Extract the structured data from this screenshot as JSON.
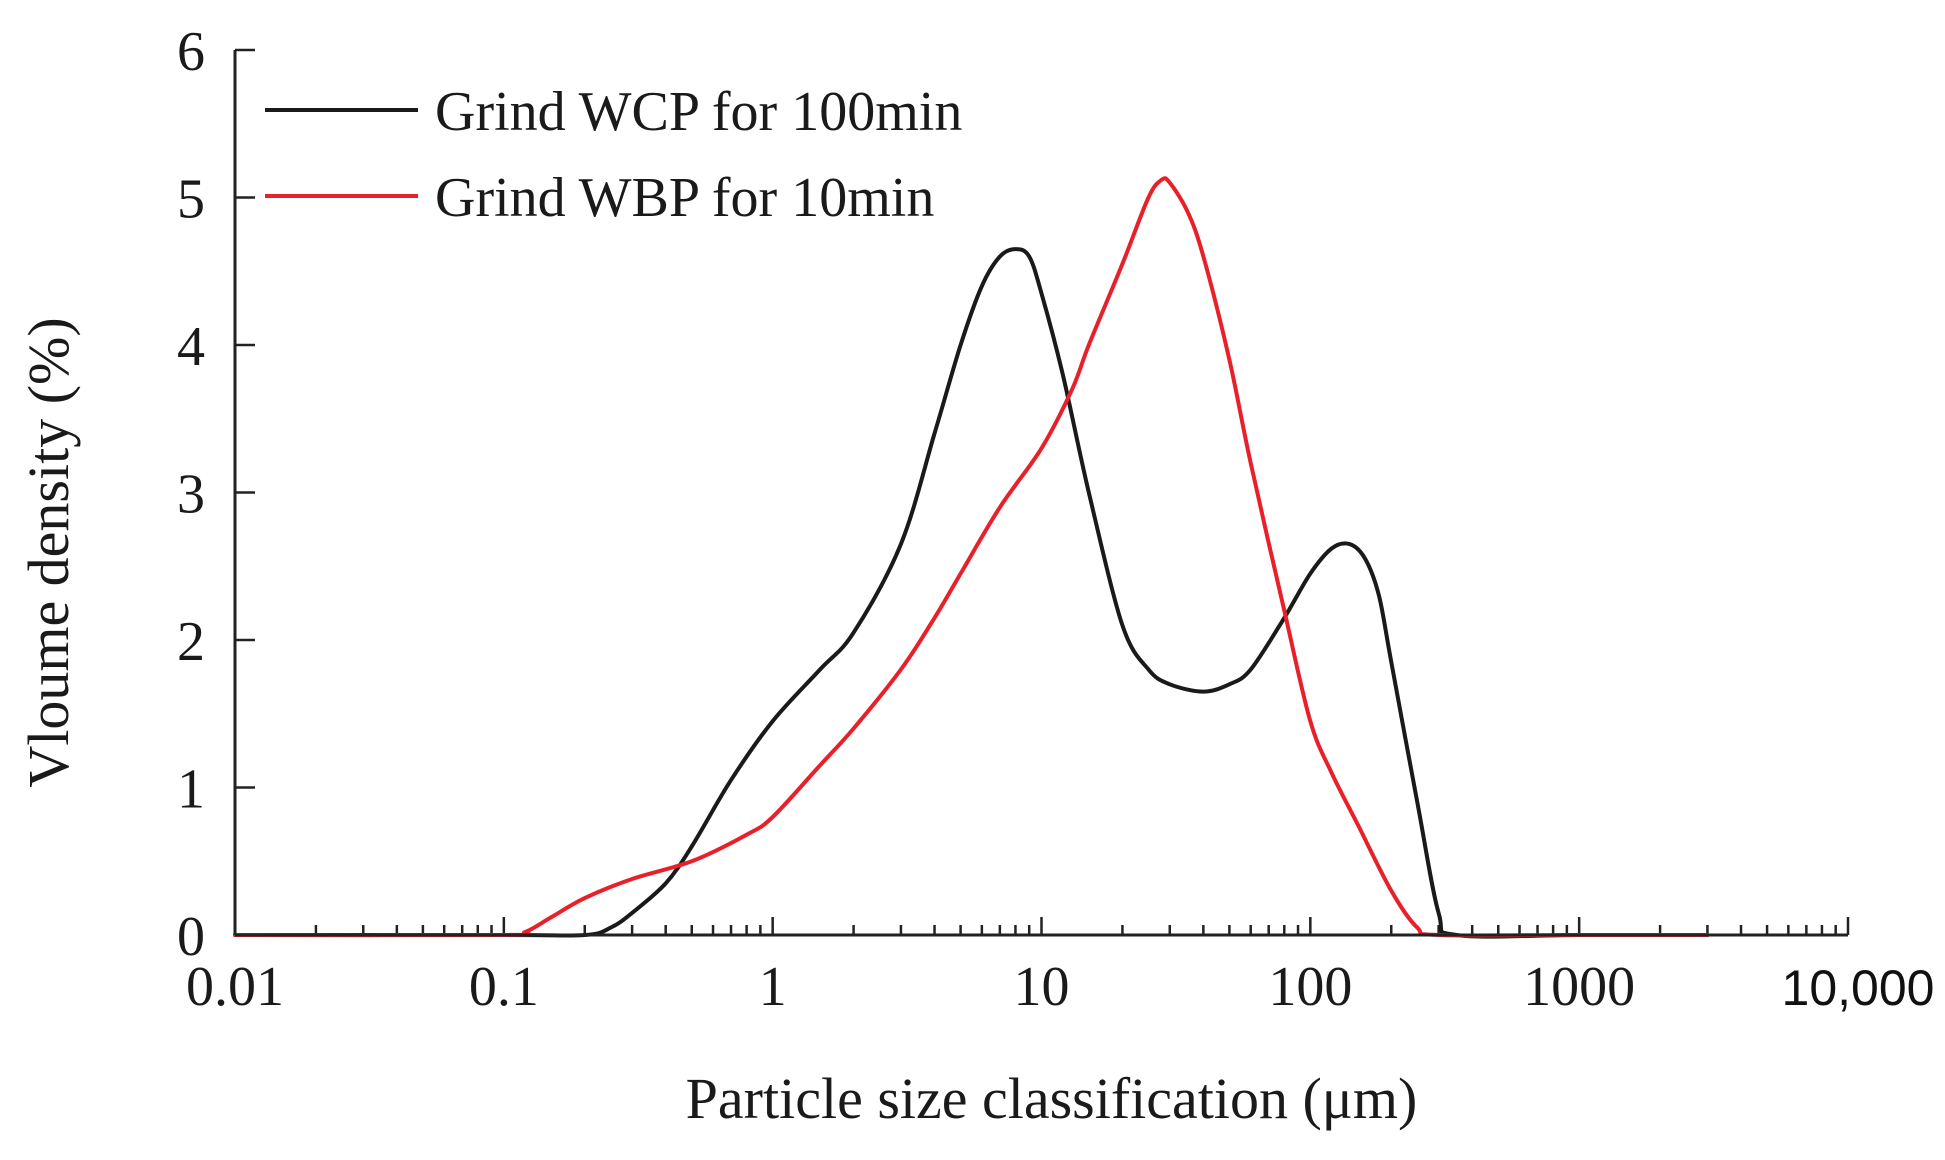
{
  "chart_data": {
    "type": "line",
    "title": "",
    "xlabel": "Particle size classification (μm)",
    "ylabel": "Vloume density (%)",
    "xscale": "log",
    "xlim": [
      0.01,
      10000
    ],
    "ylim": [
      0,
      6
    ],
    "x_ticks": [
      0.01,
      0.1,
      1,
      10,
      100,
      1000,
      10000
    ],
    "x_tick_labels": [
      "0.01",
      "0.1",
      "1",
      "10",
      "100",
      "1000",
      "10,000"
    ],
    "y_ticks": [
      0,
      1,
      2,
      3,
      4,
      5,
      6
    ],
    "y_tick_labels": [
      "0",
      "1",
      "2",
      "3",
      "4",
      "5",
      "6"
    ],
    "legend_position": "top-left",
    "grid": false,
    "series": [
      {
        "name": "Grind WCP for 100min",
        "color": "#1a1a1a",
        "x": [
          0.01,
          0.1,
          0.2,
          0.25,
          0.3,
          0.4,
          0.5,
          0.7,
          1,
          1.5,
          2,
          3,
          4,
          5,
          6,
          7,
          8,
          9,
          10,
          12,
          15,
          20,
          25,
          30,
          40,
          50,
          60,
          80,
          100,
          120,
          140,
          160,
          180,
          200,
          250,
          300,
          350,
          1000,
          3000
        ],
        "values": [
          0,
          0,
          0,
          0.05,
          0.15,
          0.35,
          0.6,
          1.05,
          1.45,
          1.8,
          2.05,
          2.65,
          3.4,
          4.0,
          4.4,
          4.6,
          4.65,
          4.6,
          4.35,
          3.8,
          3.0,
          2.1,
          1.8,
          1.7,
          1.65,
          1.7,
          1.8,
          2.15,
          2.45,
          2.62,
          2.65,
          2.55,
          2.3,
          1.85,
          0.9,
          0.15,
          0,
          0,
          0
        ]
      },
      {
        "name": "Grind WBP for 10min",
        "color": "#e8202a",
        "x": [
          0.01,
          0.1,
          0.12,
          0.15,
          0.2,
          0.3,
          0.5,
          0.8,
          1,
          1.5,
          2,
          3,
          4,
          5,
          7,
          10,
          13,
          15,
          20,
          25,
          28,
          30,
          35,
          40,
          50,
          60,
          80,
          100,
          120,
          150,
          200,
          250,
          300,
          1000,
          3000
        ],
        "values": [
          0,
          0,
          0.02,
          0.12,
          0.25,
          0.38,
          0.5,
          0.68,
          0.8,
          1.15,
          1.4,
          1.8,
          2.15,
          2.45,
          2.9,
          3.3,
          3.7,
          4.0,
          4.55,
          5.0,
          5.12,
          5.1,
          4.9,
          4.6,
          3.9,
          3.2,
          2.2,
          1.45,
          1.1,
          0.75,
          0.3,
          0.05,
          0,
          0,
          0
        ]
      }
    ]
  }
}
